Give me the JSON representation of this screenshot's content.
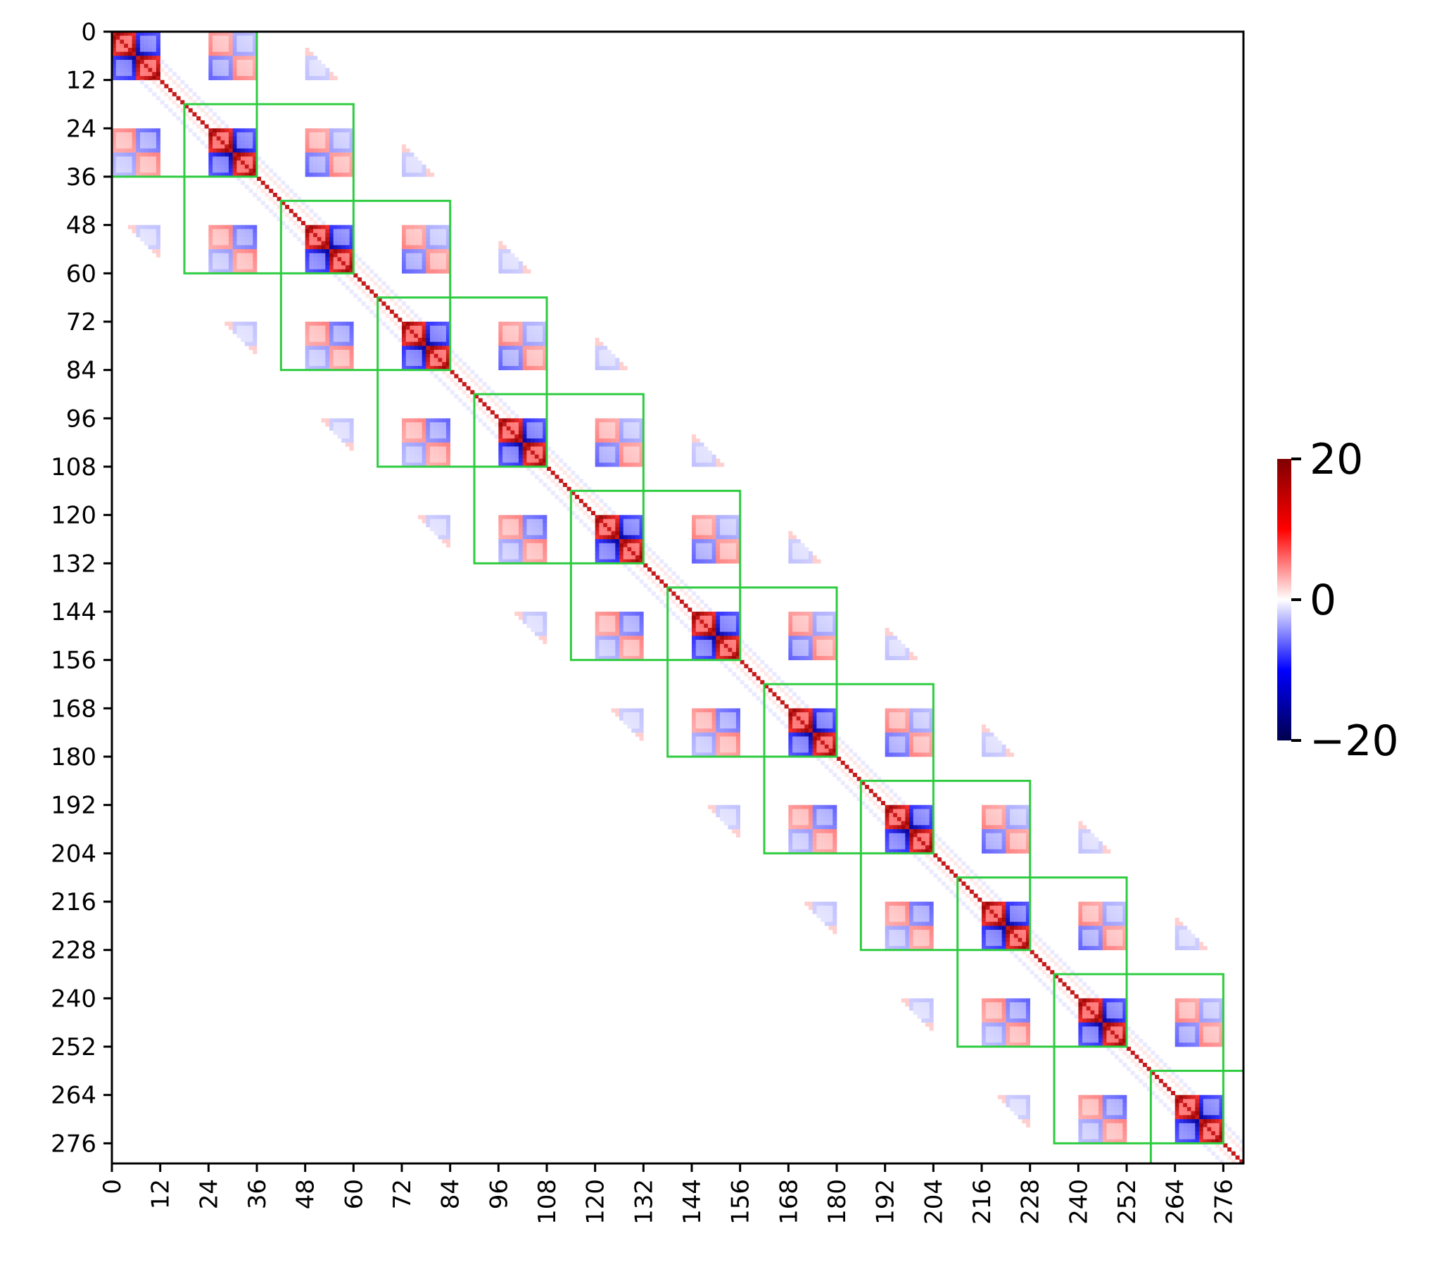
{
  "chart_data": {
    "type": "heatmap",
    "title": "",
    "xlabel": "",
    "ylabel": "",
    "n": 281,
    "xlim": [
      0,
      281
    ],
    "ylim": [
      281,
      0
    ],
    "x_ticks": [
      "0",
      "12",
      "24",
      "36",
      "48",
      "60",
      "72",
      "84",
      "96",
      "108",
      "120",
      "132",
      "144",
      "156",
      "168",
      "180",
      "192",
      "204",
      "216",
      "228",
      "240",
      "252",
      "264",
      "276"
    ],
    "y_ticks": [
      "0",
      "12",
      "24",
      "36",
      "48",
      "60",
      "72",
      "84",
      "96",
      "108",
      "120",
      "132",
      "144",
      "156",
      "168",
      "180",
      "192",
      "204",
      "216",
      "228",
      "240",
      "252",
      "264",
      "276"
    ],
    "colorbar": {
      "min": -20,
      "max": 20,
      "ticks": [
        "20",
        "0",
        "−20"
      ],
      "colormap": "seismic"
    },
    "colors": {
      "box": "#2ecc40",
      "positive": "#8b0000",
      "negative": "#00008b",
      "zero": "#ffffff"
    },
    "block_spacing": 24,
    "block_pattern": [
      {
        "offset": 0,
        "size": 6,
        "sign": -1
      },
      {
        "offset": 6,
        "size": 6,
        "sign": 1
      }
    ],
    "boxes": [
      {
        "start": 0,
        "end": 36
      },
      {
        "start": 18,
        "end": 60
      },
      {
        "start": 42,
        "end": 84
      },
      {
        "start": 66,
        "end": 108
      },
      {
        "start": 90,
        "end": 132
      },
      {
        "start": 114,
        "end": 156
      },
      {
        "start": 138,
        "end": 180
      },
      {
        "start": 162,
        "end": 204
      },
      {
        "start": 186,
        "end": 228
      },
      {
        "start": 210,
        "end": 252
      },
      {
        "start": 234,
        "end": 276
      },
      {
        "start": 258,
        "end": 281
      }
    ]
  }
}
